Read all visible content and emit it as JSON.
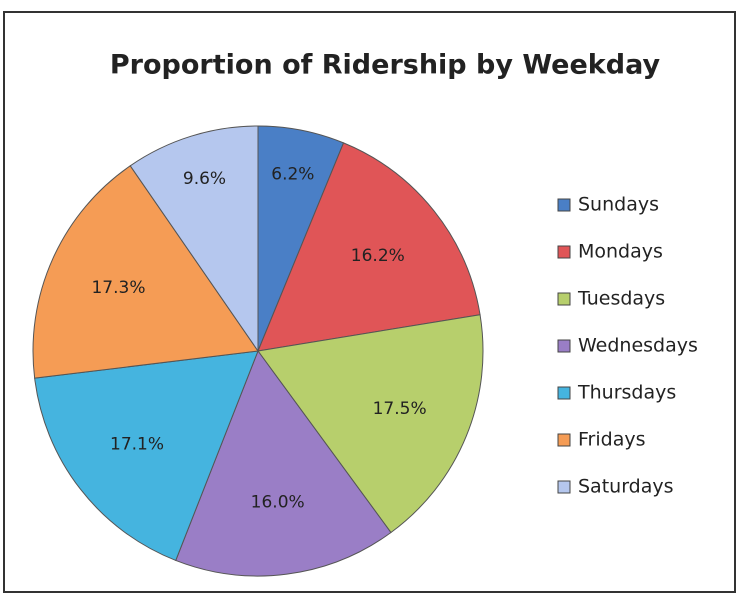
{
  "chart_data": {
    "type": "pie",
    "title": "Proportion of Ridership by Weekday",
    "categories": [
      "Sundays",
      "Mondays",
      "Tuesdays",
      "Wednesdays",
      "Thursdays",
      "Fridays",
      "Saturdays"
    ],
    "values": [
      6.2,
      16.2,
      17.5,
      16.0,
      17.1,
      17.3,
      9.6
    ],
    "value_labels": [
      "6.2%",
      "16.2%",
      "17.5%",
      "16.0%",
      "17.1%",
      "17.3%",
      "9.6%"
    ],
    "colors": [
      "#4a7fc6",
      "#e05557",
      "#b7cf6c",
      "#9a7ec6",
      "#45b4df",
      "#f59c55",
      "#b5c7ee"
    ],
    "legend": "right"
  }
}
